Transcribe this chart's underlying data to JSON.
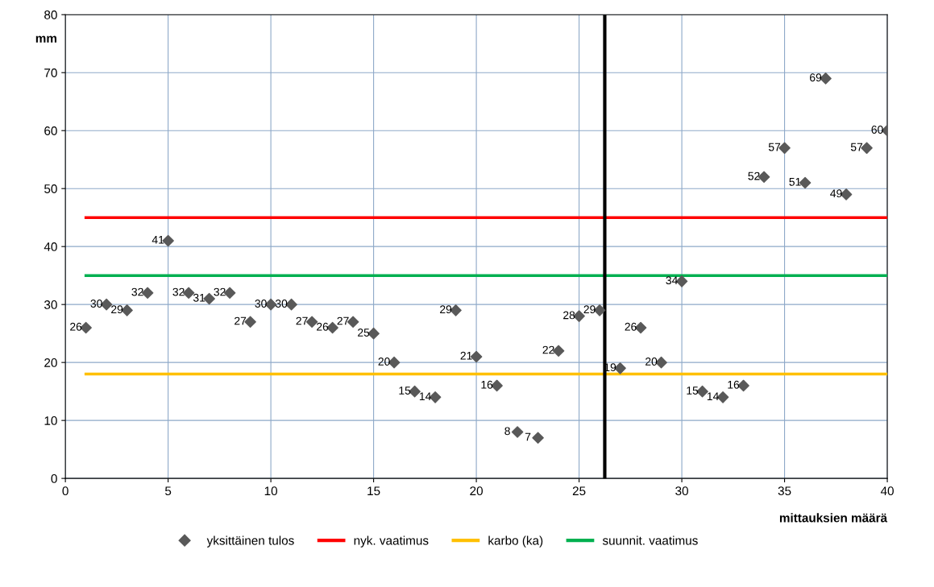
{
  "chart_data": {
    "type": "scatter",
    "xlabel": "mittauksien määrä",
    "ylabel": "mm",
    "xlim": [
      0,
      40
    ],
    "xticks": [
      0,
      5,
      10,
      15,
      20,
      25,
      30,
      35,
      40
    ],
    "ylim": [
      0,
      80
    ],
    "yticks": [
      0,
      10,
      20,
      30,
      40,
      50,
      60,
      70,
      80
    ],
    "grid": true,
    "legend": "bottom",
    "series": [
      {
        "name": "yksittäinen tulos",
        "marker": "diamond",
        "value_labels": [
          "26",
          "30",
          "29",
          "32",
          "41",
          "32",
          "31",
          "32",
          "27",
          "30",
          "30",
          "27",
          "26",
          "27",
          "25",
          "20",
          "15",
          "14",
          "29",
          "21",
          "16",
          "8",
          "7",
          "22",
          "28",
          "29",
          "19",
          "26",
          "20",
          "34",
          "15",
          "14",
          "16",
          "52",
          "57",
          "51",
          "69",
          "49",
          "57",
          "60"
        ],
        "color": "#595959",
        "x": [
          1,
          2,
          3,
          4,
          5,
          6,
          7,
          8,
          9,
          10,
          11,
          12,
          13,
          14,
          15,
          16,
          17,
          18,
          19,
          20,
          21,
          22,
          23,
          24,
          25,
          26,
          27,
          28,
          29,
          30,
          31,
          32,
          33,
          34,
          35,
          36,
          37,
          38,
          39,
          40
        ],
        "values": [
          26,
          30,
          29,
          32,
          41,
          32,
          31,
          32,
          27,
          30,
          30,
          27,
          26,
          27,
          25,
          20,
          15,
          14,
          29,
          21,
          16,
          8,
          7,
          22,
          28,
          29,
          19,
          26,
          20,
          34,
          15,
          14,
          16,
          52,
          57,
          51,
          69,
          49,
          57,
          60
        ]
      },
      {
        "name": "nyk. vaatimus",
        "type": "line",
        "color": "#ff0000",
        "x": [
          1,
          40
        ],
        "values": [
          45,
          45
        ]
      },
      {
        "name": "karbo (ka)",
        "type": "line",
        "color": "#ffc000",
        "x": [
          1,
          40
        ],
        "values": [
          18,
          18
        ]
      },
      {
        "name": "suunnit. vaatimus",
        "type": "line",
        "color": "#00b050",
        "x": [
          1,
          40
        ],
        "values": [
          35,
          35
        ]
      }
    ],
    "ref_lines": [
      {
        "axis": "x",
        "value": 26.25,
        "color": "#000000"
      }
    ]
  }
}
